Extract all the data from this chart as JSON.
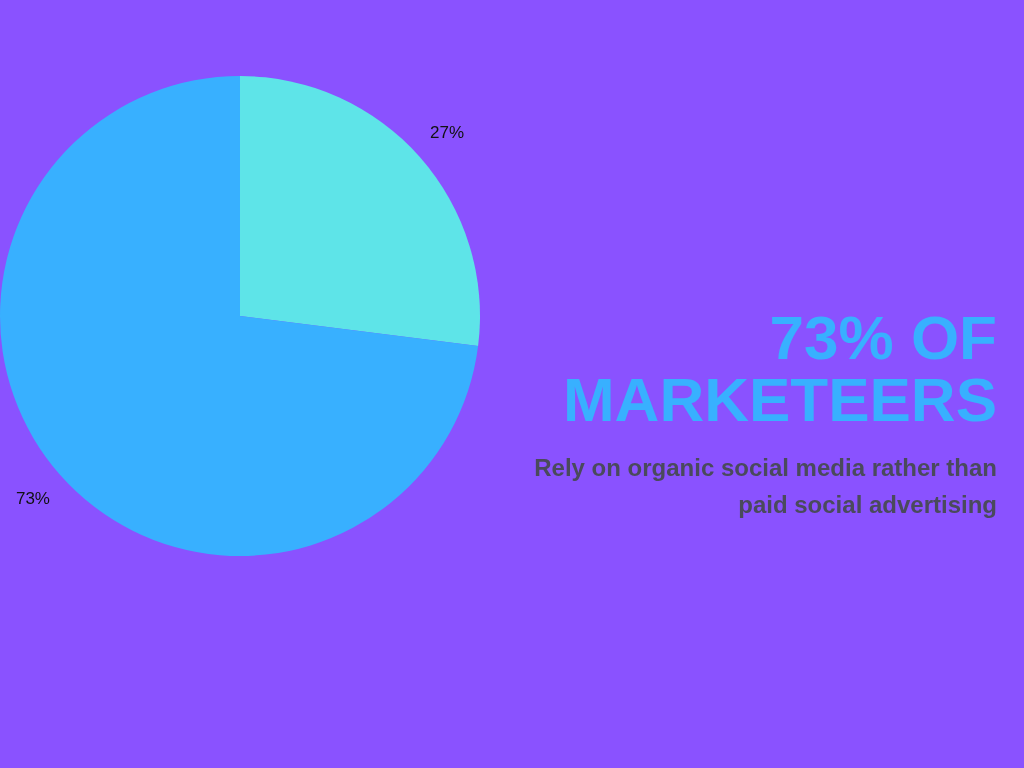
{
  "chart_data": {
    "type": "pie",
    "title": "73% OF\nMARKETEERS",
    "subtitle": "Rely on organic social media rather than\npaid social advertising",
    "categories": [
      null,
      null
    ],
    "values": [
      27,
      73
    ],
    "colors": [
      "#5ee4e8",
      "#38b0ff"
    ],
    "value_labels": [
      "27%",
      "73%"
    ]
  }
}
